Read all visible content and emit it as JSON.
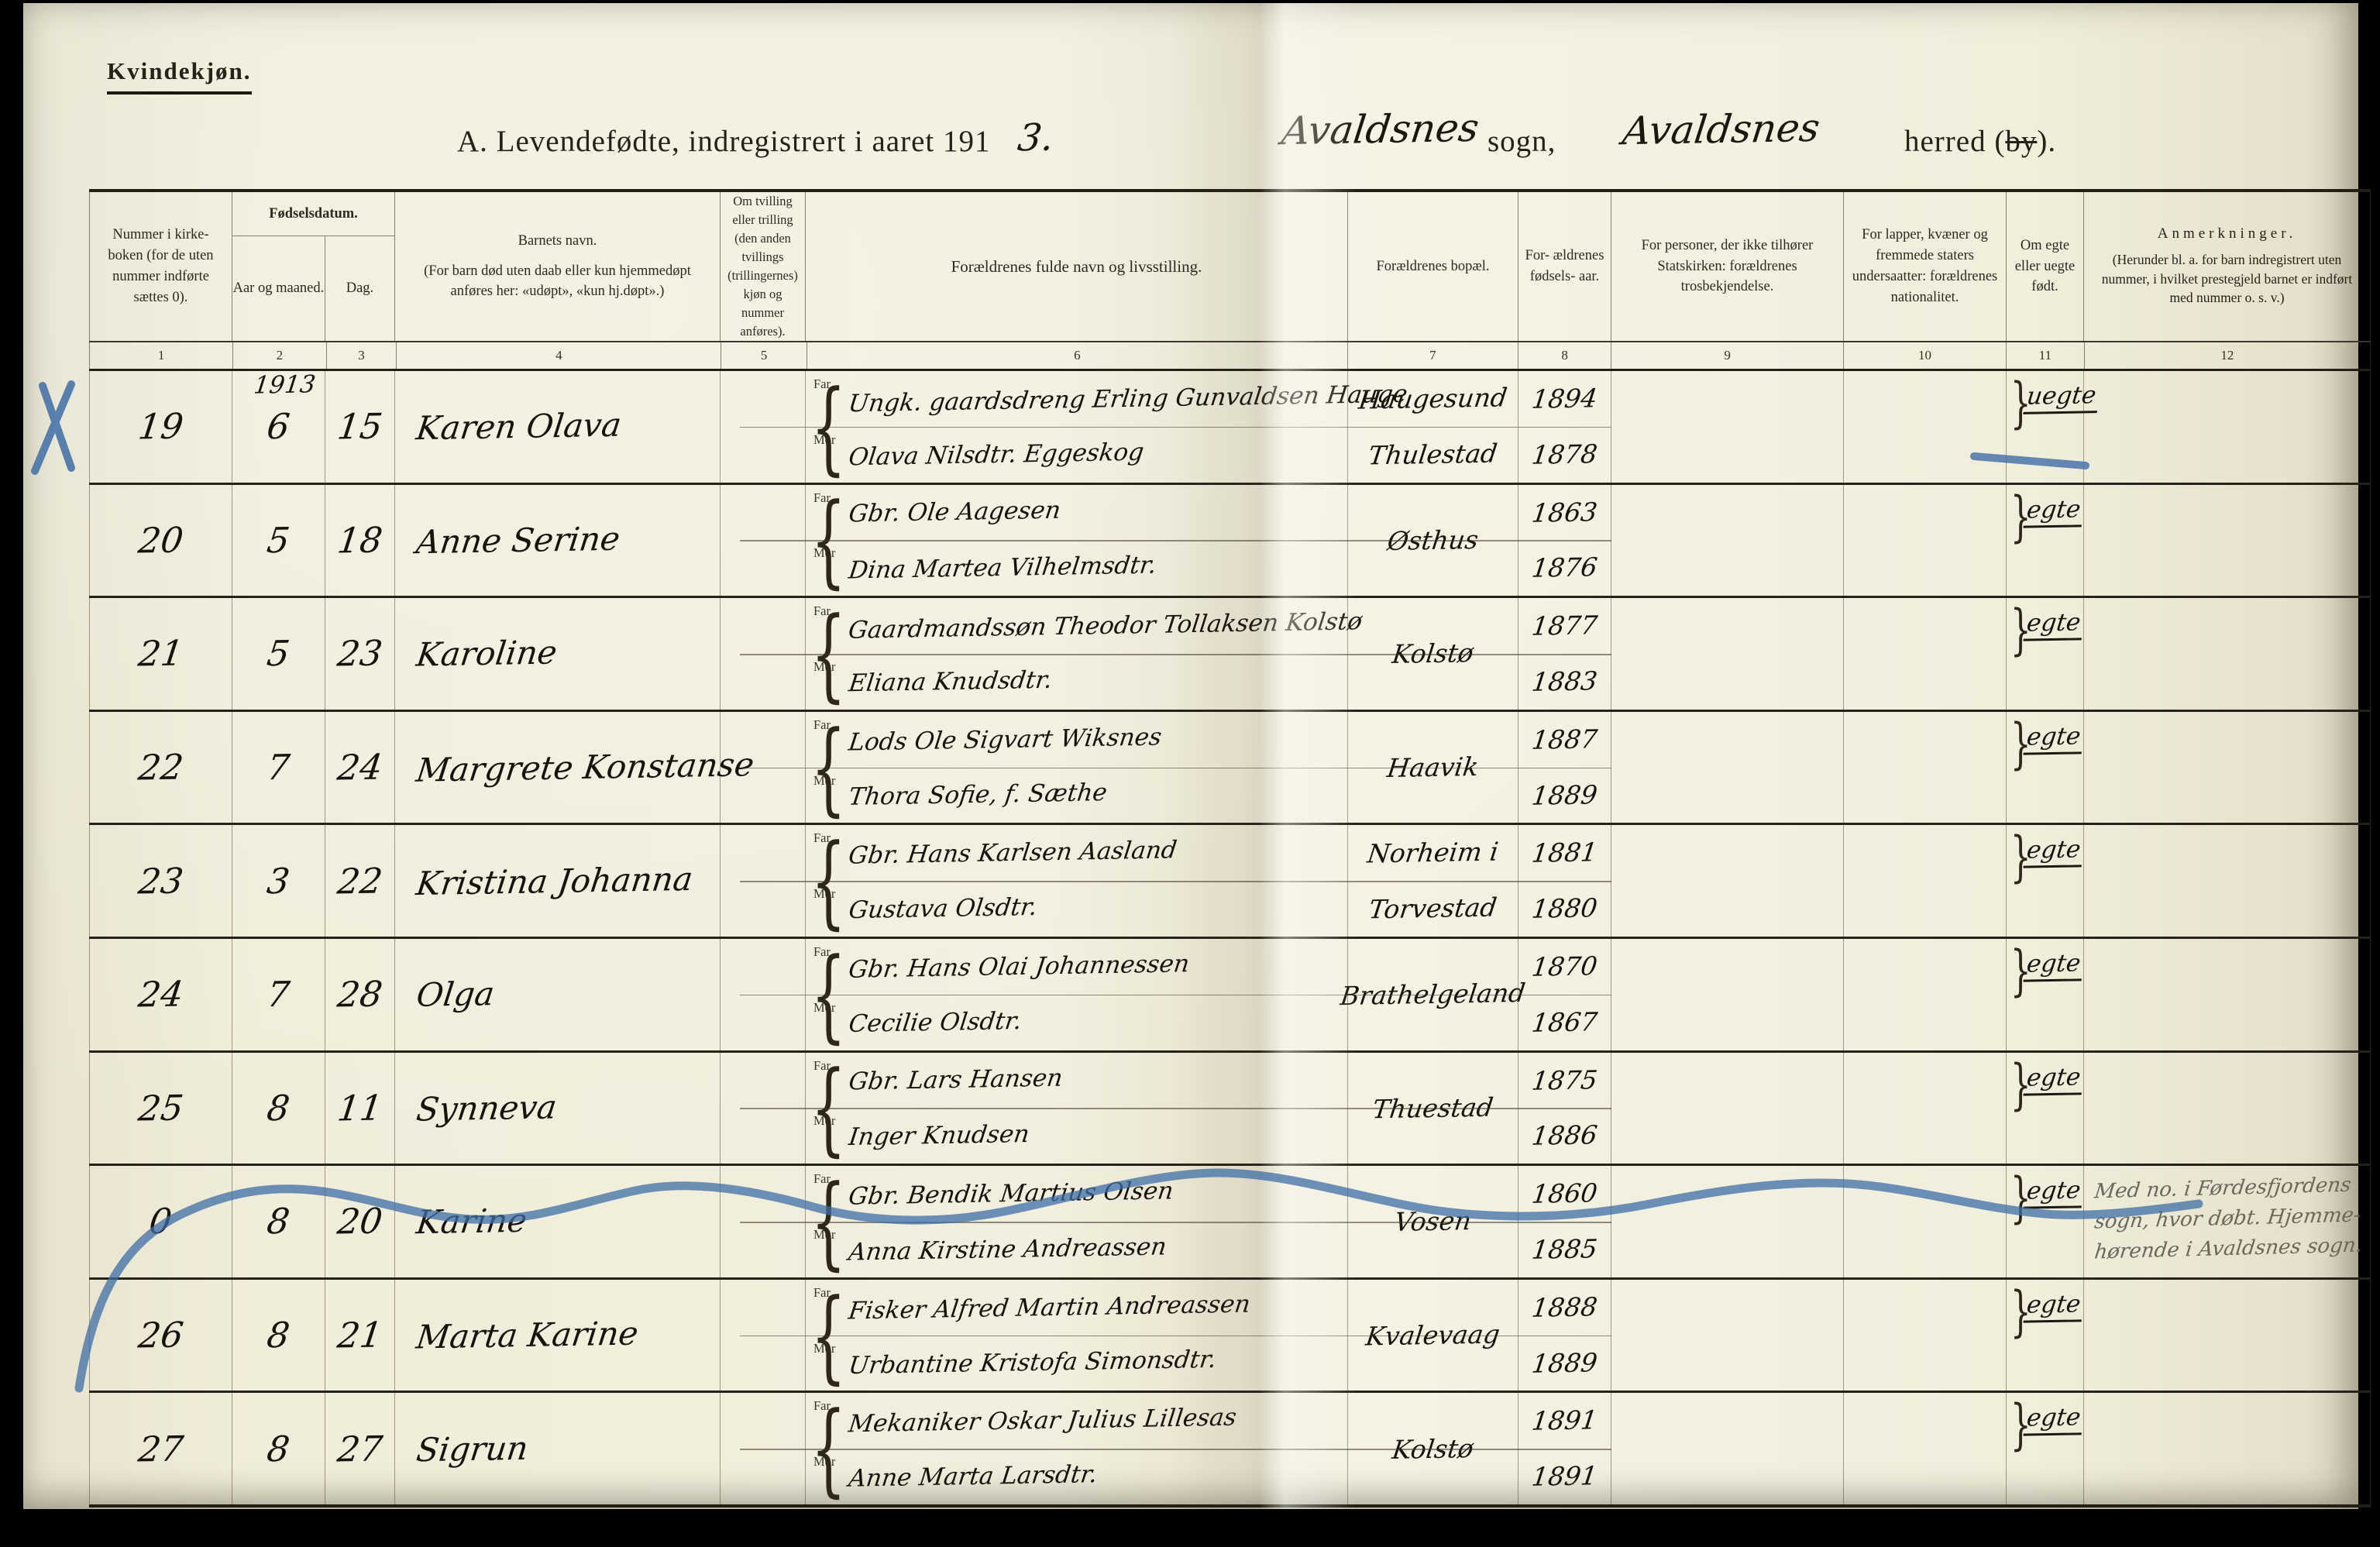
{
  "page": {
    "corner_label": "Kvindekjøn.",
    "title": {
      "printed_prefix": "A.  Levendefødte, indregistrert i aaret 191",
      "year_digit_hand": "3.",
      "sogn_hand": "Avaldsnes",
      "sogn_label": "sogn,",
      "herred_hand": "Avaldsnes",
      "herred_label_pre": "herred (",
      "herred_struck_word": "by",
      "herred_label_post": ")."
    }
  },
  "table": {
    "headers": {
      "col1": "Nummer i kirke- boken (for de uten nummer indførte sættes 0).",
      "fodselsdatum": "Fødselsdatum.",
      "aar_og_maaned": "Aar og maaned.",
      "dag": "Dag.",
      "col4_title": "Barnets navn.",
      "col4_sub": "(For barn død uten daab eller kun hjemmedøpt anføres her: «udøpt», «kun hj.døpt».)",
      "col5": "Om tvilling eller trilling (den anden tvillings (trillingernes) kjøn og nummer anføres).",
      "col6": "Forældrenes fulde navn og livsstilling.",
      "col7": "Forældrenes bopæl.",
      "col8": "For- ældrenes fødsels- aar.",
      "col9": "For personer, der ikke tilhører Statskirken: forældrenes trosbekjendelse.",
      "col10": "For lapper, kvæner og fremmede staters undersaatter: forældrenes nationalitet.",
      "col11": "Om egte eller uegte født.",
      "col12_title": "Anmerkninger.",
      "col12_sub": "(Herunder bl. a. for barn indregistrert uten nummer, i hvilket prestegjeld barnet er indført med nummer o. s. v.)"
    },
    "column_numbers": [
      "1",
      "2",
      "3",
      "4",
      "5",
      "6",
      "7",
      "8",
      "9",
      "10",
      "11",
      "12"
    ],
    "far_label": "Far",
    "mor_label": "Mor",
    "rows": [
      {
        "number": "19",
        "year": "1913",
        "month": "6",
        "day": "15",
        "name": "Karen Olava",
        "far": "Ungk. gaardsdreng Erling Gunvaldsen Hauge",
        "mor": "Olava Nilsdtr. Eggeskog",
        "bopael": [
          "Haugesund",
          "Thulestad"
        ],
        "far_year": "1894",
        "mor_year": "1878",
        "legitimacy": "uegte",
        "note": []
      },
      {
        "number": "20",
        "year": "",
        "month": "5",
        "day": "18",
        "name": "Anne Serine",
        "far": "Gbr. Ole Aagesen",
        "mor": "Dina Martea Vilhelmsdtr.",
        "bopael": [
          "Østhus"
        ],
        "far_year": "1863",
        "mor_year": "1876",
        "legitimacy": "egte",
        "note": []
      },
      {
        "number": "21",
        "year": "",
        "month": "5",
        "day": "23",
        "name": "Karoline",
        "far": "Gaardmandssøn Theodor Tollaksen Kolstø",
        "mor": "Eliana Knudsdtr.",
        "bopael": [
          "Kolstø"
        ],
        "far_year": "1877",
        "mor_year": "1883",
        "legitimacy": "egte",
        "note": []
      },
      {
        "number": "22",
        "year": "",
        "month": "7",
        "day": "24",
        "name": "Margrete Konstanse",
        "far": "Lods Ole Sigvart Wiksnes",
        "mor": "Thora Sofie, f. Sæthe",
        "bopael": [
          "Haavik"
        ],
        "far_year": "1887",
        "mor_year": "1889",
        "legitimacy": "egte",
        "note": []
      },
      {
        "number": "23",
        "year": "",
        "month": "3",
        "day": "22",
        "name": "Kristina Johanna",
        "far": "Gbr. Hans Karlsen Aasland",
        "mor": "Gustava Olsdtr.",
        "bopael": [
          "Norheim i",
          "Torvestad"
        ],
        "far_year": "1881",
        "mor_year": "1880",
        "legitimacy": "egte",
        "note": []
      },
      {
        "number": "24",
        "year": "",
        "month": "7",
        "day": "28",
        "name": "Olga",
        "far": "Gbr. Hans Olai Johannessen",
        "mor": "Cecilie Olsdtr.",
        "bopael": [
          "Brathelgeland"
        ],
        "far_year": "1870",
        "mor_year": "1867",
        "legitimacy": "egte",
        "note": []
      },
      {
        "number": "25",
        "year": "",
        "month": "8",
        "day": "11",
        "name": "Synneva",
        "far": "Gbr. Lars Hansen",
        "mor": "Inger Knudsen",
        "bopael": [
          "Thuestad"
        ],
        "far_year": "1875",
        "mor_year": "1886",
        "legitimacy": "egte",
        "note": []
      },
      {
        "number": "0",
        "year": "",
        "month": "8",
        "day": "20",
        "name": "Karine",
        "far": "Gbr. Bendik Martius Olsen",
        "mor": "Anna Kirstine Andreassen",
        "bopael": [
          "Vosen"
        ],
        "far_year": "1860",
        "mor_year": "1885",
        "legitimacy": "egte",
        "note": [
          "Med no. i Førdesfjordens",
          "sogn, hvor døbt. Hjemme-",
          "hørende i Avaldsnes sogn."
        ]
      },
      {
        "number": "26",
        "year": "",
        "month": "8",
        "day": "21",
        "name": "Marta Karine",
        "far": "Fisker Alfred Martin Andreassen",
        "mor": "Urbantine Kristofa Simonsdtr.",
        "bopael": [
          "Kvalevaag"
        ],
        "far_year": "1888",
        "mor_year": "1889",
        "legitimacy": "egte",
        "note": []
      },
      {
        "number": "27",
        "year": "",
        "month": "8",
        "day": "27",
        "name": "Sigrun",
        "far": "Mekaniker Oskar Julius Lillesas",
        "mor": "Anne Marta Larsdtr.",
        "bopael": [
          "Kolstø"
        ],
        "far_year": "1891",
        "mor_year": "1891",
        "legitimacy": "egte",
        "note": []
      }
    ]
  },
  "colors": {
    "paper": "#f1eedc",
    "ink": "#17130c",
    "blue_pencil": "#3e6da6",
    "pencil_note": "#6b675a"
  }
}
